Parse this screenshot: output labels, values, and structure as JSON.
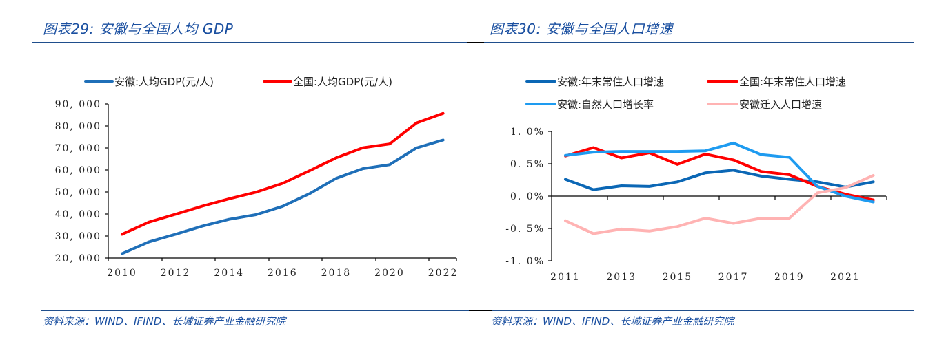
{
  "left_panel": {
    "title": "图表29:  安徽与全国人均 GDP",
    "source": "资料来源：WIND、IFIND、长城证券产业金融研究院"
  },
  "right_panel": {
    "title": "图表30:  安徽与全国人口增速",
    "source": "资料来源：WIND、IFIND、长城证券产业金融研究院"
  },
  "chart_data": [
    {
      "type": "line",
      "title": "安徽与全国人均 GDP",
      "xlabel": "",
      "ylabel": "",
      "ylim": [
        20000,
        90000
      ],
      "yticks": [
        20000,
        30000,
        40000,
        50000,
        60000,
        70000,
        80000,
        90000
      ],
      "ytick_labels": [
        "20, 000",
        "30, 000",
        "40, 000",
        "50, 000",
        "60, 000",
        "70, 000",
        "80, 000",
        "90, 000"
      ],
      "xtick_labels": [
        "2010",
        "2012",
        "2014",
        "2016",
        "2018",
        "2020",
        "2022"
      ],
      "x": [
        2010,
        2011,
        2012,
        2013,
        2014,
        2015,
        2016,
        2017,
        2018,
        2019,
        2020,
        2021,
        2022
      ],
      "legend_position": "top",
      "grid": false,
      "series": [
        {
          "name": "安徽:人均GDP(元/人)",
          "color": "#1f6fb8",
          "values": [
            22000,
            27300,
            30800,
            34500,
            37600,
            39700,
            43500,
            49200,
            56200,
            60600,
            62400,
            70000,
            73600
          ]
        },
        {
          "name": "全国:人均GDP(元/人)",
          "color": "#ff0000",
          "values": [
            30800,
            36300,
            39900,
            43600,
            46900,
            49900,
            53900,
            59600,
            65500,
            70100,
            71800,
            81300,
            85700
          ]
        }
      ]
    },
    {
      "type": "line",
      "title": "安徽与全国人口增速",
      "xlabel": "",
      "ylabel": "",
      "ylim": [
        -1.0,
        1.0
      ],
      "yticks": [
        -1.0,
        -0.5,
        0.0,
        0.5,
        1.0
      ],
      "ytick_labels": [
        "-1. 0%",
        "-0. 5%",
        "0. 0%",
        "0. 5%",
        "1. 0%"
      ],
      "xtick_labels": [
        "2011",
        "2013",
        "2015",
        "2017",
        "2019",
        "2021"
      ],
      "x": [
        2011,
        2012,
        2013,
        2014,
        2015,
        2016,
        2017,
        2018,
        2019,
        2020,
        2021,
        2022
      ],
      "legend_position": "top",
      "grid": false,
      "series": [
        {
          "name": "安徽:年末常住人口增速",
          "color": "#0b67b5",
          "values": [
            0.26,
            0.1,
            0.16,
            0.15,
            0.22,
            0.36,
            0.4,
            0.31,
            0.26,
            0.22,
            0.14,
            0.22
          ]
        },
        {
          "name": "全国:年末常住人口增速",
          "color": "#ff0000",
          "values": [
            0.62,
            0.75,
            0.59,
            0.67,
            0.49,
            0.65,
            0.56,
            0.38,
            0.33,
            0.15,
            0.03,
            -0.06
          ]
        },
        {
          "name": "安徽:自然人口增长率",
          "color": "#1e9bf0",
          "values": [
            0.63,
            0.68,
            0.69,
            0.69,
            0.69,
            0.7,
            0.82,
            0.64,
            0.6,
            0.15,
            0.0,
            -0.09
          ]
        },
        {
          "name": "安徽迁入人口增速",
          "color": "#ffb3b3",
          "values": [
            -0.38,
            -0.58,
            -0.51,
            -0.54,
            -0.47,
            -0.34,
            -0.42,
            -0.34,
            -0.34,
            0.05,
            0.13,
            0.32
          ]
        }
      ]
    }
  ]
}
